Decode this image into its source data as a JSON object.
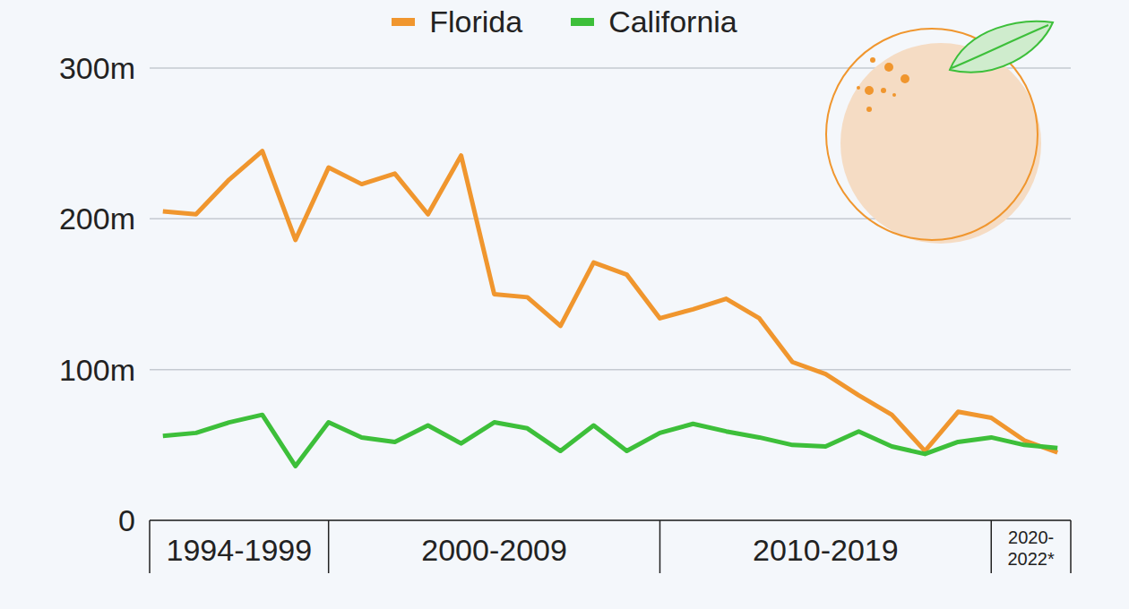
{
  "chart_data": {
    "type": "line",
    "x": [
      1994,
      1995,
      1996,
      1997,
      1998,
      1999,
      2000,
      2001,
      2002,
      2003,
      2004,
      2005,
      2006,
      2007,
      2008,
      2009,
      2010,
      2011,
      2012,
      2013,
      2014,
      2015,
      2016,
      2017,
      2018,
      2019,
      2020,
      2021
    ],
    "series": [
      {
        "name": "Florida",
        "color": "#f0962e",
        "values": [
          205,
          203,
          226,
          245,
          186,
          234,
          223,
          230,
          203,
          242,
          150,
          148,
          129,
          171,
          163,
          134,
          140,
          147,
          134,
          105,
          97,
          83,
          70,
          46,
          72,
          68,
          53,
          45
        ]
      },
      {
        "name": "California",
        "color": "#3dbf3a",
        "values": [
          56,
          58,
          65,
          70,
          36,
          65,
          55,
          52,
          63,
          51,
          65,
          61,
          46,
          63,
          46,
          58,
          64,
          59,
          55,
          50,
          49,
          59,
          49,
          44,
          52,
          55,
          50,
          48
        ]
      }
    ],
    "xlim": [
      1993.6,
      2021.4
    ],
    "ylim": [
      0,
      300
    ],
    "yticks": [
      0,
      {
        "value": 100,
        "label": "100m"
      },
      {
        "value": 200,
        "label": "200m"
      },
      {
        "value": 300,
        "label": "300m"
      }
    ],
    "grid": true,
    "legend": "top",
    "x_groups": [
      {
        "label": "1994-1999",
        "from": 1993.6,
        "to": 1999
      },
      {
        "label": "2000-2009",
        "from": 1999,
        "to": 2009
      },
      {
        "label": "2010-2019",
        "from": 2009,
        "to": 2019
      },
      {
        "label": "2020-2022*",
        "from": 2019,
        "to": 2021.4
      }
    ]
  }
}
